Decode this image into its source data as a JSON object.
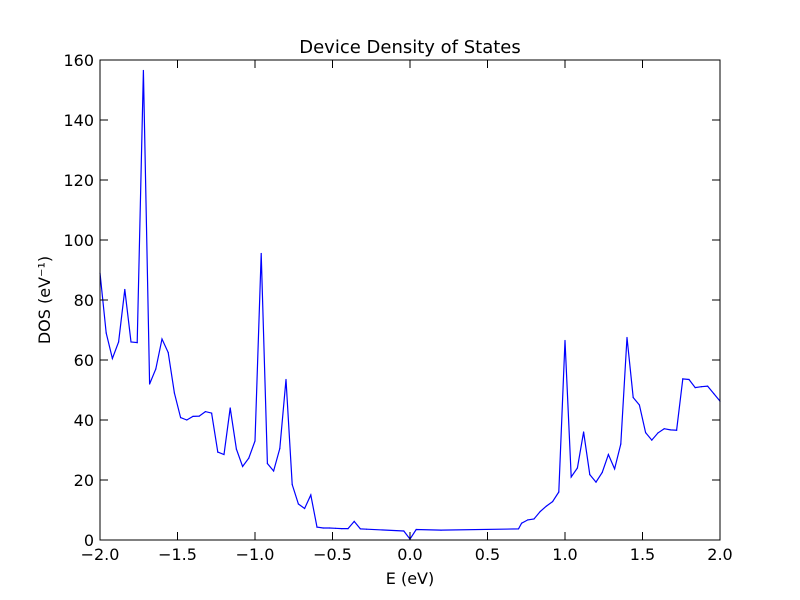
{
  "chart_data": {
    "type": "line",
    "title": "Device Density of States",
    "xlabel": "E (eV)",
    "ylabel": "DOS (eV⁻¹)",
    "xlim": [
      -2.0,
      2.0
    ],
    "ylim": [
      0,
      160
    ],
    "x_ticks": [
      "−2.0",
      "−1.5",
      "−1.0",
      "−0.5",
      "0.0",
      "0.5",
      "1.0",
      "1.5",
      "2.0"
    ],
    "y_ticks": [
      "0",
      "20",
      "40",
      "60",
      "80",
      "100",
      "120",
      "140",
      "160"
    ],
    "grid": false,
    "colors": {
      "line": "#0000ff",
      "frame": "#000000",
      "background": "#ffffff"
    },
    "series": [
      {
        "x": [
          -2.0,
          -1.96,
          -1.92,
          -1.88,
          -1.84,
          -1.8,
          -1.76,
          -1.72,
          -1.68,
          -1.64,
          -1.6,
          -1.56,
          -1.52,
          -1.48,
          -1.44,
          -1.4,
          -1.36,
          -1.32,
          -1.28,
          -1.24,
          -1.2,
          -1.16,
          -1.12,
          -1.08,
          -1.04,
          -1.0,
          -0.96,
          -0.92,
          -0.88,
          -0.84,
          -0.8,
          -0.76,
          -0.72,
          -0.68,
          -0.64,
          -0.6,
          -0.56,
          -0.52,
          -0.48,
          -0.44,
          -0.4,
          -0.36,
          -0.32,
          -0.28,
          -0.04,
          0.0,
          0.04,
          0.2,
          0.7,
          0.72,
          0.76,
          0.8,
          0.84,
          0.88,
          0.92,
          0.96,
          1.0,
          1.04,
          1.08,
          1.12,
          1.16,
          1.2,
          1.24,
          1.28,
          1.32,
          1.36,
          1.4,
          1.44,
          1.48,
          1.52,
          1.56,
          1.6,
          1.64,
          1.68,
          1.72,
          1.76,
          1.8,
          1.84,
          1.88,
          1.92,
          1.96,
          2.0
        ],
        "y": [
          89,
          69,
          60.5,
          66,
          83.5,
          66,
          65.8,
          156.5,
          52,
          57,
          67,
          62.5,
          49,
          40.8,
          40,
          41.2,
          41.3,
          42.8,
          42.3,
          29.3,
          28.5,
          44,
          30.3,
          24.5,
          27.3,
          33,
          95.5,
          25.5,
          23,
          30.5,
          53.5,
          18.5,
          12,
          10.5,
          15,
          4.3,
          4.0,
          4.0,
          3.9,
          3.8,
          3.8,
          6.2,
          3.7,
          3.6,
          3.0,
          0.3,
          3.5,
          3.3,
          3.7,
          5.6,
          6.7,
          7.0,
          9.5,
          11.3,
          12.8,
          16,
          66.5,
          21,
          24,
          36,
          21.8,
          19.3,
          22.5,
          28.5,
          23.7,
          32,
          67.5,
          47.5,
          45,
          35.8,
          33.3,
          35.7,
          37.1,
          36.7,
          36.6,
          53.7,
          53.5,
          50.8,
          51.1,
          51.3,
          48.8,
          46.3
        ]
      }
    ]
  }
}
